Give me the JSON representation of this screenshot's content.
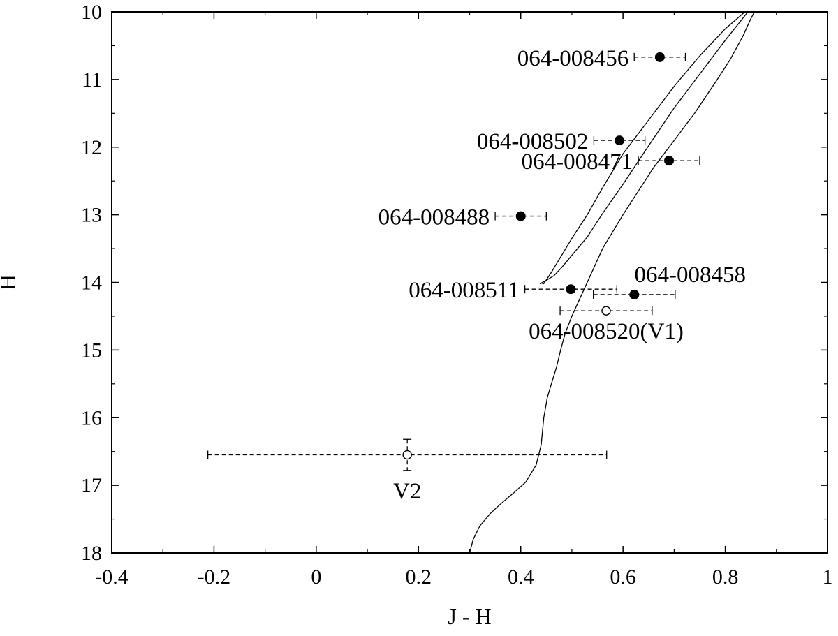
{
  "chart_data": {
    "type": "scatter",
    "title": "",
    "xlabel": "J - H",
    "ylabel": "H",
    "xlim": [
      -0.4,
      1.0
    ],
    "ylim": [
      10,
      18
    ],
    "y_inverted": true,
    "grid": false,
    "x_ticks": [
      {
        "value": -0.4,
        "label": "-0.4"
      },
      {
        "value": -0.2,
        "label": "-0.2"
      },
      {
        "value": 0,
        "label": "0"
      },
      {
        "value": 0.2,
        "label": "0.2"
      },
      {
        "value": 0.4,
        "label": "0.4"
      },
      {
        "value": 0.6,
        "label": "0.6"
      },
      {
        "value": 0.8,
        "label": "0.8"
      },
      {
        "value": 1.0,
        "label": "1"
      }
    ],
    "y_ticks": [
      {
        "value": 10,
        "label": "10"
      },
      {
        "value": 11,
        "label": "11"
      },
      {
        "value": 12,
        "label": "12"
      },
      {
        "value": 13,
        "label": "13"
      },
      {
        "value": 14,
        "label": "14"
      },
      {
        "value": 15,
        "label": "15"
      },
      {
        "value": 16,
        "label": "16"
      },
      {
        "value": 17,
        "label": "17"
      },
      {
        "value": 18,
        "label": "18"
      }
    ],
    "points": [
      {
        "name": "064-008456",
        "x": 0.672,
        "y": 10.67,
        "xerr": 0.05,
        "marker": "filled",
        "label_side": "left"
      },
      {
        "name": "064-008502",
        "x": 0.593,
        "y": 11.9,
        "xerr": 0.05,
        "marker": "filled",
        "label_side": "left"
      },
      {
        "name": "064-008471",
        "x": 0.69,
        "y": 12.2,
        "xerr": 0.06,
        "marker": "filled",
        "label_side": "left"
      },
      {
        "name": "064-008488",
        "x": 0.4,
        "y": 13.02,
        "xerr": 0.05,
        "marker": "filled",
        "label_side": "left"
      },
      {
        "name": "064-008511",
        "x": 0.498,
        "y": 14.1,
        "xerr": 0.09,
        "marker": "filled",
        "label_side": "left"
      },
      {
        "name": "064-008458",
        "x": 0.622,
        "y": 14.18,
        "xerr": 0.08,
        "marker": "filled",
        "label_side": "above"
      },
      {
        "name": "064-008520(V1)",
        "x": 0.567,
        "y": 14.42,
        "xerr": 0.09,
        "marker": "open",
        "label_side": "below"
      },
      {
        "name": "V2",
        "x": 0.178,
        "y": 16.55,
        "xerr": 0.39,
        "yerr": 0.23,
        "marker": "open",
        "label_side": "below"
      }
    ],
    "isochrone": {
      "x": [
        0.3,
        0.307,
        0.32,
        0.34,
        0.36,
        0.385,
        0.41,
        0.43,
        0.44,
        0.445,
        0.452,
        0.46,
        0.47,
        0.478,
        0.487,
        0.5,
        0.515,
        0.53,
        0.545,
        0.56,
        0.58,
        0.6,
        0.63,
        0.66,
        0.7,
        0.74,
        0.78,
        0.81,
        0.835,
        0.85,
        0.858
      ],
      "y": [
        18.0,
        17.8,
        17.6,
        17.42,
        17.28,
        17.12,
        16.95,
        16.7,
        16.4,
        16.0,
        15.7,
        15.5,
        15.25,
        15.0,
        14.75,
        14.5,
        14.25,
        14.0,
        13.75,
        13.5,
        13.25,
        13.0,
        12.65,
        12.3,
        11.9,
        11.5,
        11.05,
        10.7,
        10.35,
        10.1,
        9.99
      ]
    },
    "branch": {
      "x": [
        0.44,
        0.445,
        0.46,
        0.48,
        0.5,
        0.53,
        0.56,
        0.6,
        0.65,
        0.7,
        0.75,
        0.8,
        0.84,
        0.845,
        0.84,
        0.8,
        0.75,
        0.7,
        0.65,
        0.6,
        0.56,
        0.53,
        0.5,
        0.48,
        0.465,
        0.45,
        0.44,
        0.437
      ],
      "y": [
        14.01,
        14.02,
        13.85,
        13.6,
        13.35,
        13.0,
        12.6,
        12.1,
        11.6,
        11.1,
        10.65,
        10.25,
        9.99,
        9.99,
        10.04,
        10.42,
        10.92,
        11.42,
        11.98,
        12.55,
        12.98,
        13.33,
        13.6,
        13.78,
        13.9,
        13.97,
        14.01,
        14.02
      ]
    }
  }
}
